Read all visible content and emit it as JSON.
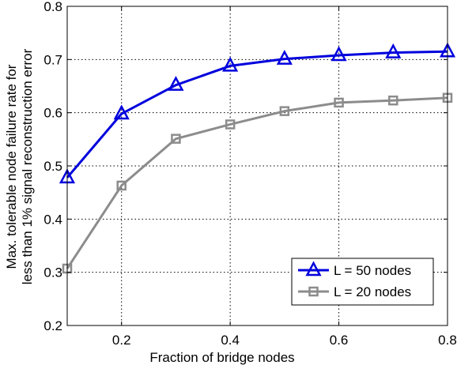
{
  "chart_data": {
    "type": "line",
    "xlabel": "Fraction of bridge nodes",
    "ylabel_line1": "Max. tolerable node failure rate for",
    "ylabel_line2": "less than 1% signal reconstruction error",
    "xlim": [
      0.1,
      0.8
    ],
    "ylim": [
      0.2,
      0.8
    ],
    "xticks": [
      0.2,
      0.4,
      0.6,
      0.8
    ],
    "yticks": [
      0.2,
      0.3,
      0.4,
      0.5,
      0.6,
      0.7,
      0.8
    ],
    "xtick_labels": [
      "0.2",
      "0.4",
      "0.6",
      "0.8"
    ],
    "ytick_labels": [
      "0.2",
      "0.3",
      "0.4",
      "0.5",
      "0.6",
      "0.7",
      "0.8"
    ],
    "grid": true,
    "legend_position": "bottom-right",
    "series": [
      {
        "name": "L = 50 nodes",
        "color": "#0000dd",
        "marker": "triangle",
        "x": [
          0.1,
          0.2,
          0.3,
          0.4,
          0.5,
          0.6,
          0.7,
          0.8
        ],
        "y": [
          0.478,
          0.598,
          0.652,
          0.688,
          0.701,
          0.708,
          0.713,
          0.715
        ]
      },
      {
        "name": "L = 20 nodes",
        "color": "#8c8c8c",
        "marker": "square",
        "x": [
          0.1,
          0.2,
          0.3,
          0.4,
          0.5,
          0.6,
          0.7,
          0.8
        ],
        "y": [
          0.307,
          0.463,
          0.551,
          0.578,
          0.603,
          0.619,
          0.623,
          0.628
        ]
      }
    ]
  }
}
